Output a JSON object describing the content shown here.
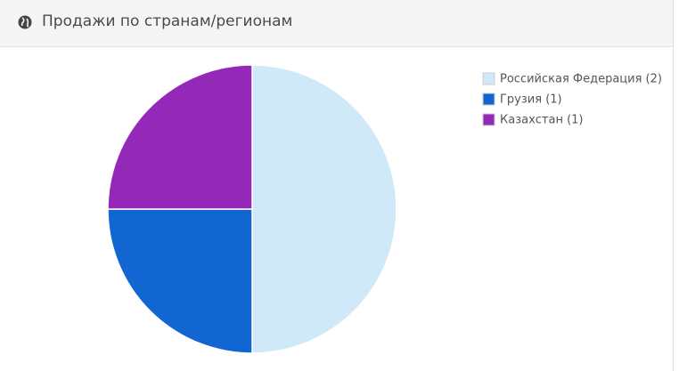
{
  "chart_data": {
    "type": "pie",
    "title": "Продажи по странам/регионам",
    "categories": [
      "Российская Федерация (2)",
      "Грузия (1)",
      "Казахстан (1)"
    ],
    "values": [
      2,
      1,
      1
    ],
    "colors": [
      "#d0e9f8",
      "#1166d1",
      "#9428b9"
    ],
    "legend": "top-right"
  }
}
